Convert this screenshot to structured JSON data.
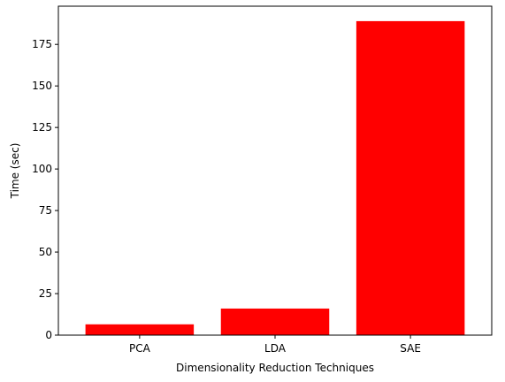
{
  "chart_data": {
    "type": "bar",
    "title": "",
    "xlabel": "Dimensionality Reduction Techniques",
    "ylabel": "Time (sec)",
    "categories": [
      "PCA",
      "LDA",
      "SAE"
    ],
    "values": [
      6.5,
      16,
      189
    ],
    "ylim": [
      0,
      198
    ],
    "yticks": [
      0,
      25,
      50,
      75,
      100,
      125,
      150,
      175
    ],
    "bar_color": "#ff0000",
    "grid": false,
    "legend": "none"
  }
}
